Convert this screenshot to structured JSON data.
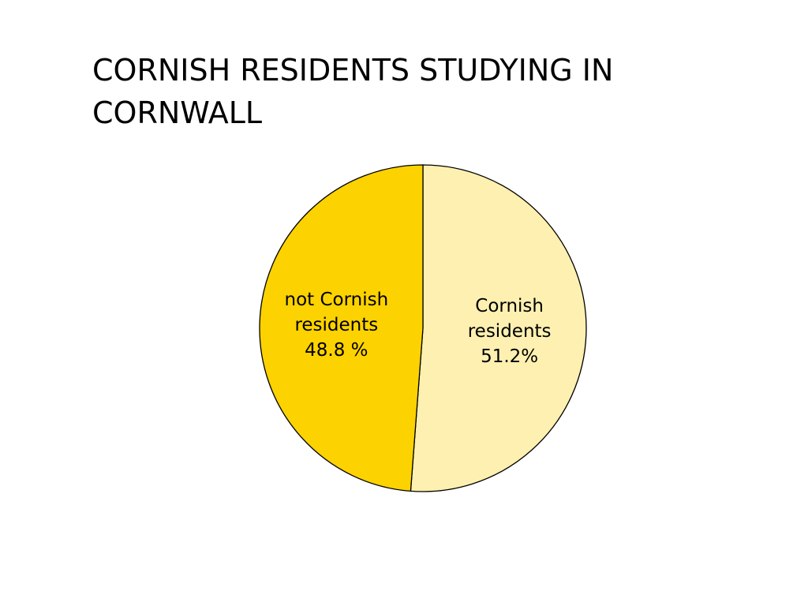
{
  "chart_data": {
    "type": "pie",
    "title": "CORNISH RESIDENTS STUDYING IN CORNWALL",
    "categories": [
      "Cornish residents",
      "not Cornish residents"
    ],
    "values": [
      51.2,
      48.8
    ],
    "value_labels": [
      "51.2%",
      "48.8 %"
    ],
    "colors": [
      "#fdf0b0",
      "#fcd200"
    ]
  }
}
